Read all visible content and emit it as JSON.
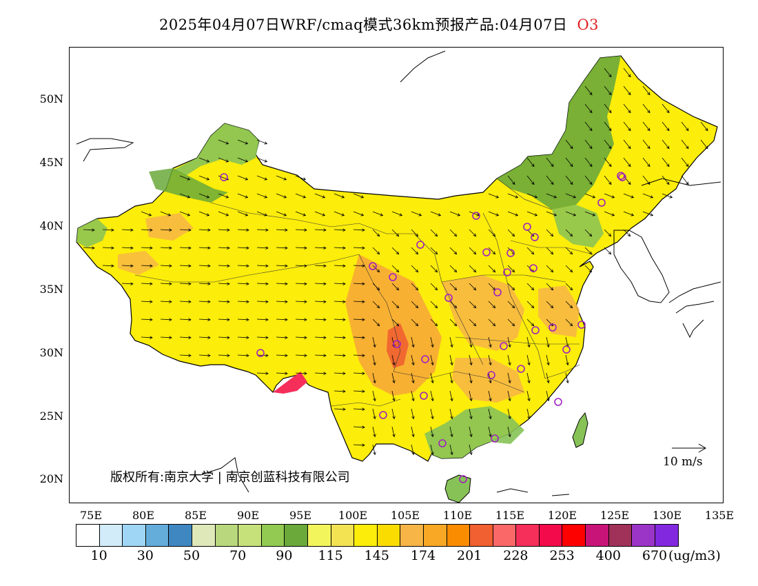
{
  "header": {
    "title": "2025年04月07日WRF/cmaq模式36km预报产品:04月07日",
    "pollutant": "O3"
  },
  "map": {
    "lat_labels": [
      "50N",
      "45N",
      "40N",
      "35N",
      "30N",
      "25N",
      "20N"
    ],
    "lon_labels": [
      "75E",
      "80E",
      "85E",
      "90E",
      "95E",
      "100E",
      "105E",
      "110E",
      "115E",
      "120E",
      "125E",
      "130E",
      "135E"
    ],
    "copyright": "版权所有:南京大学 | 南京创蓝科技有限公司",
    "wind_scale_label": "10 m/s",
    "colors": {
      "ocean": "#ffffff",
      "land_yellow": "#fced0a",
      "land_orange": "#f7a936",
      "land_green": "#87c257",
      "land_dark_green": "#6aa93a"
    },
    "station_marker_icon": "circle-outline-purple"
  },
  "colorbar": {
    "colors": [
      "#ffffff",
      "#d2ecfa",
      "#9fd6f5",
      "#64addb",
      "#3f87c1",
      "#dfe8b9",
      "#b9d77d",
      "#c6e07a",
      "#93ca51",
      "#6aa93a",
      "#f3f55d",
      "#f3e353",
      "#fced0a",
      "#fbdc00",
      "#f7b447",
      "#f8a825",
      "#fa8c00",
      "#f06030",
      "#fb6868",
      "#f52e5a",
      "#f30a4a",
      "#fd0000",
      "#c81478",
      "#a0325a",
      "#9b35c8",
      "#8229e0"
    ],
    "labels": [
      "10",
      "30",
      "50",
      "70",
      "90",
      "115",
      "145",
      "174",
      "201",
      "228",
      "253",
      "400",
      "670"
    ],
    "unit": "(ug/m3)"
  }
}
